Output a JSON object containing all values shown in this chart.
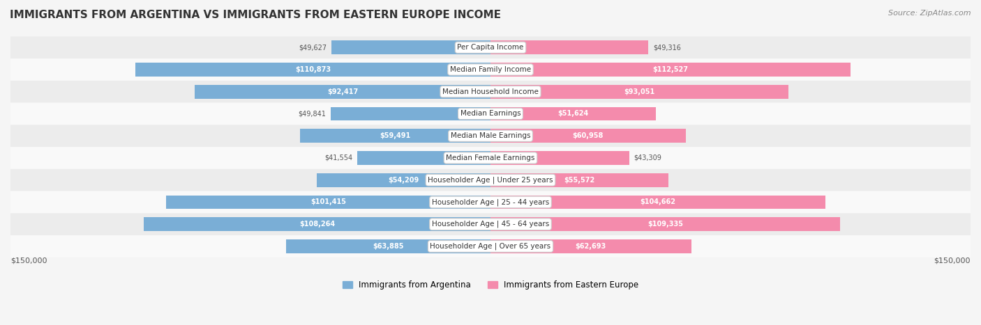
{
  "title": "IMMIGRANTS FROM ARGENTINA VS IMMIGRANTS FROM EASTERN EUROPE INCOME",
  "source": "Source: ZipAtlas.com",
  "categories": [
    "Per Capita Income",
    "Median Family Income",
    "Median Household Income",
    "Median Earnings",
    "Median Male Earnings",
    "Median Female Earnings",
    "Householder Age | Under 25 years",
    "Householder Age | 25 - 44 years",
    "Householder Age | 45 - 64 years",
    "Householder Age | Over 65 years"
  ],
  "argentina_values": [
    49627,
    110873,
    92417,
    49841,
    59491,
    41554,
    54209,
    101415,
    108264,
    63885
  ],
  "eastern_europe_values": [
    49316,
    112527,
    93051,
    51624,
    60958,
    43309,
    55572,
    104662,
    109335,
    62693
  ],
  "argentina_color": "#7aaed6",
  "eastern_europe_color": "#f48bac",
  "argentina_label": "Immigrants from Argentina",
  "eastern_europe_label": "Immigrants from Eastern Europe",
  "max_value": 150000,
  "background_color": "#f5f5f5",
  "row_bg_color": "#ececec",
  "row_alt_color": "#f9f9f9",
  "label_box_color": "#ffffff",
  "axis_label_left": "$150,000",
  "axis_label_right": "$150,000"
}
